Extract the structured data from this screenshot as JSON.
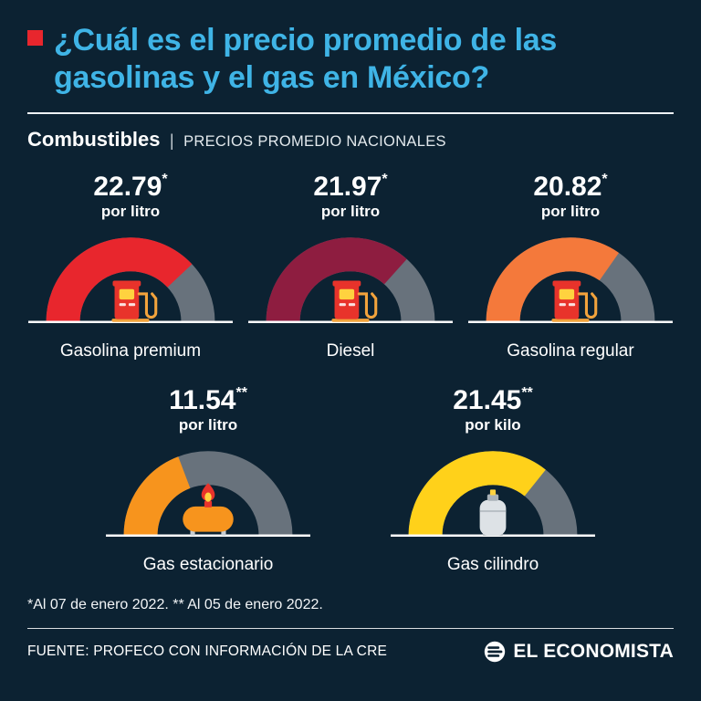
{
  "colors": {
    "background": "#0c2232",
    "title_cyan": "#3fb4e6",
    "accent_red": "#e8262d",
    "text_white": "#ffffff"
  },
  "title": "¿Cuál es el precio promedio de las gasolinas y el gas en México?",
  "subtitle": {
    "category": "Combustibles",
    "divider": "|",
    "description": "PRECIOS PROMEDIO NACIONALES"
  },
  "chart_data": {
    "type": "gauge",
    "title": "Combustibles | Precios promedio nacionales",
    "scale_max": 30,
    "track_color": "#68727c",
    "baseline_color": "#ffffff",
    "legend_position": "none",
    "gauges": [
      {
        "label": "Gasolina premium",
        "value": 22.79,
        "display": "22.79",
        "sup": "*",
        "unit": "por litro",
        "color": "#e8262d",
        "icon": "fuel-pump"
      },
      {
        "label": "Diesel",
        "value": 21.97,
        "display": "21.97",
        "sup": "*",
        "unit": "por litro",
        "color": "#8e1d40",
        "icon": "fuel-pump"
      },
      {
        "label": "Gasolina regular",
        "value": 20.82,
        "display": "20.82",
        "sup": "*",
        "unit": "por litro",
        "color": "#f4793b",
        "icon": "fuel-pump"
      },
      {
        "label": "Gas estacionario",
        "value": 11.54,
        "display": "11.54",
        "sup": "**",
        "unit": "por litro",
        "color": "#f7941d",
        "icon": "stationary-tank"
      },
      {
        "label": "Gas cilindro",
        "value": 21.45,
        "display": "21.45",
        "sup": "**",
        "unit": "por kilo",
        "color": "#ffd11a",
        "icon": "gas-cylinder"
      }
    ]
  },
  "footnote": "*Al 07 de enero 2022. ** Al 05 de enero 2022.",
  "footer": {
    "source": "FUENTE: PROFECO CON INFORMACIÓN DE LA CRE",
    "brand": "EL ECONOMISTA"
  }
}
